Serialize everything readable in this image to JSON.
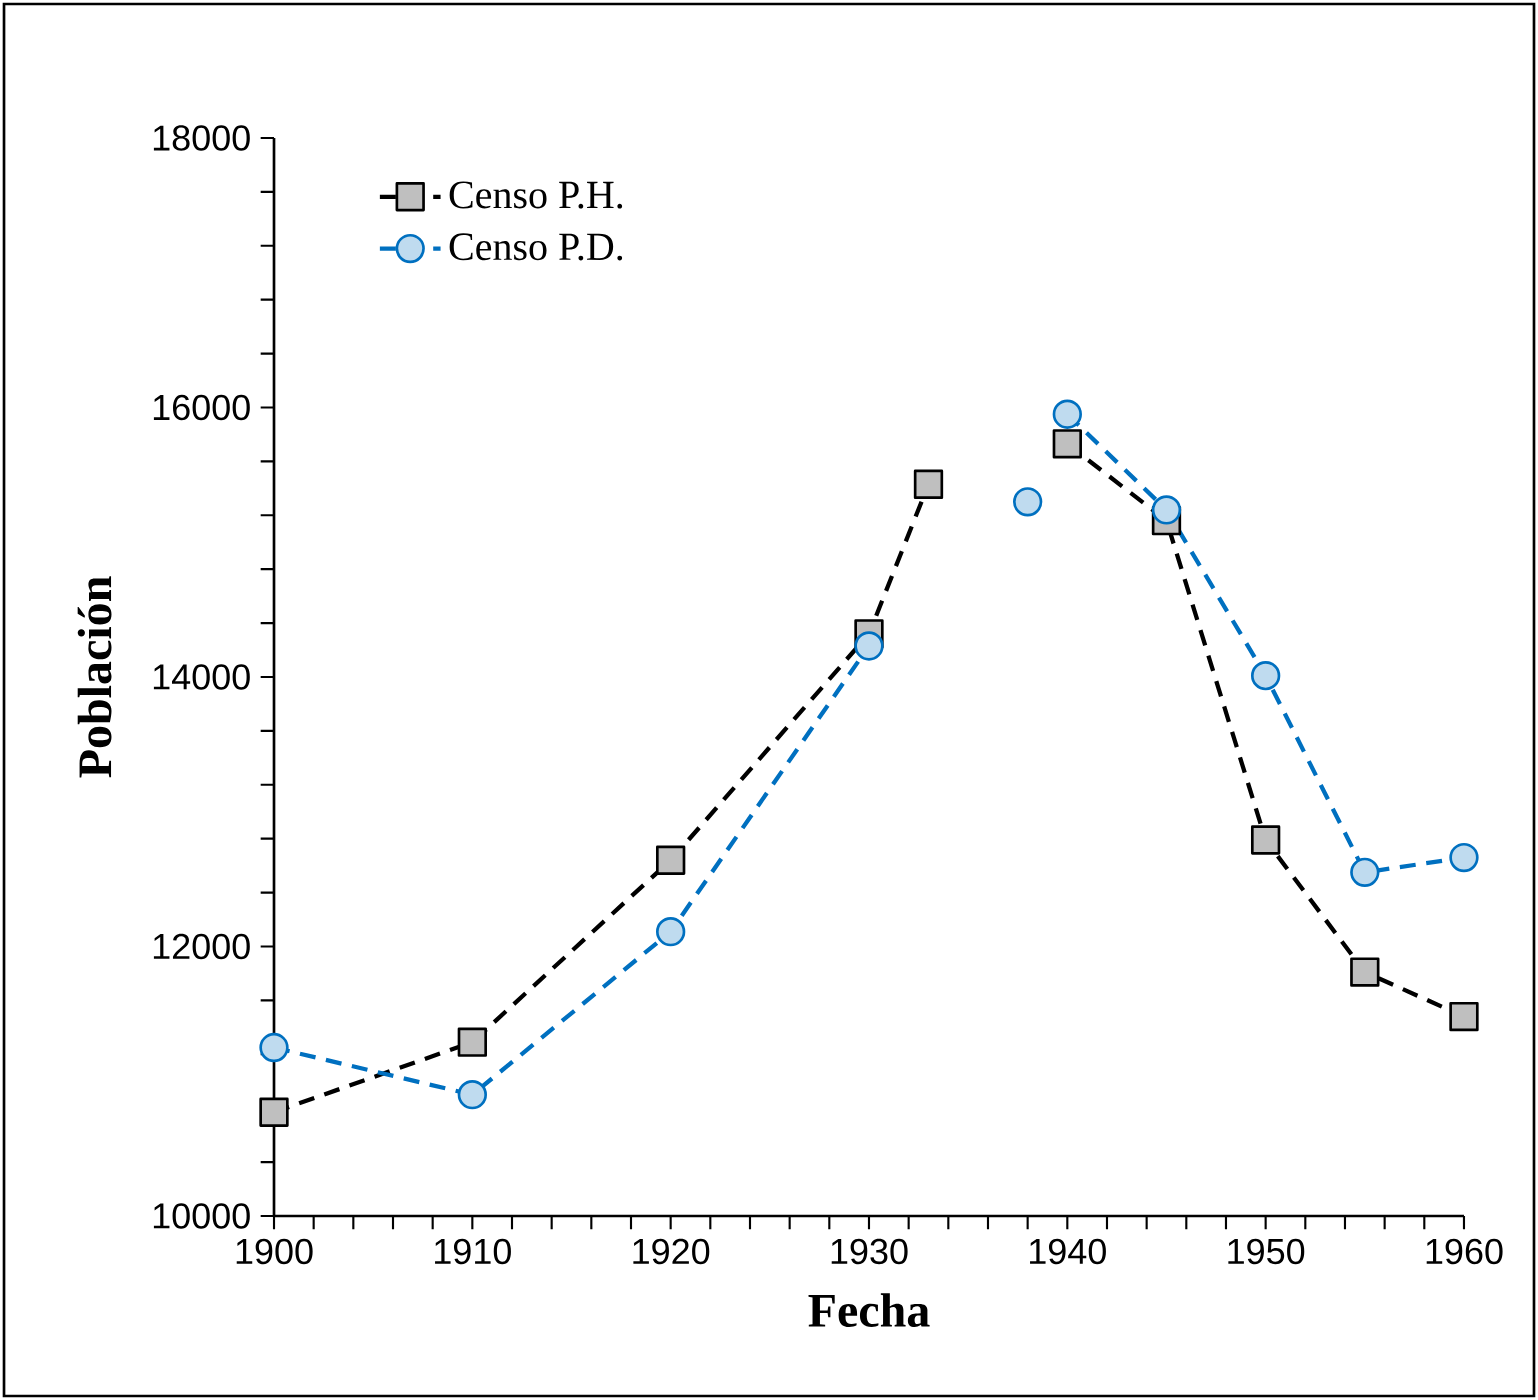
{
  "chart_data": {
    "type": "line",
    "xlabel": "Fecha",
    "ylabel": "Población",
    "xlim": [
      1900,
      1960
    ],
    "xticks": [
      1900,
      1910,
      1920,
      1930,
      1940,
      1950,
      1960
    ],
    "ylim": [
      10000,
      18000
    ],
    "yticks": [
      10000,
      12000,
      14000,
      16000,
      18000
    ],
    "legend": "top left",
    "grid": false,
    "line_style": "dashed",
    "series": [
      {
        "name": "Censo P.H.",
        "color": "#000000",
        "marker": "square",
        "x": [
          1900,
          1910,
          1920,
          1930,
          1933,
          1936,
          1940,
          1945,
          1950,
          1955,
          1960
        ],
        "values": [
          10770,
          11290,
          12640,
          14320,
          15430,
          null,
          15730,
          15160,
          12790,
          11810,
          11480
        ]
      },
      {
        "name": "Censo P.D.",
        "color": "#0070c0",
        "marker": "circle",
        "x": [
          1900,
          1910,
          1920,
          1930,
          1934,
          1938,
          1939,
          1940,
          1945,
          1950,
          1955,
          1960
        ],
        "values": [
          11250,
          10900,
          12110,
          14230,
          null,
          15300,
          null,
          15950,
          15240,
          14010,
          12550,
          12660
        ]
      }
    ]
  }
}
